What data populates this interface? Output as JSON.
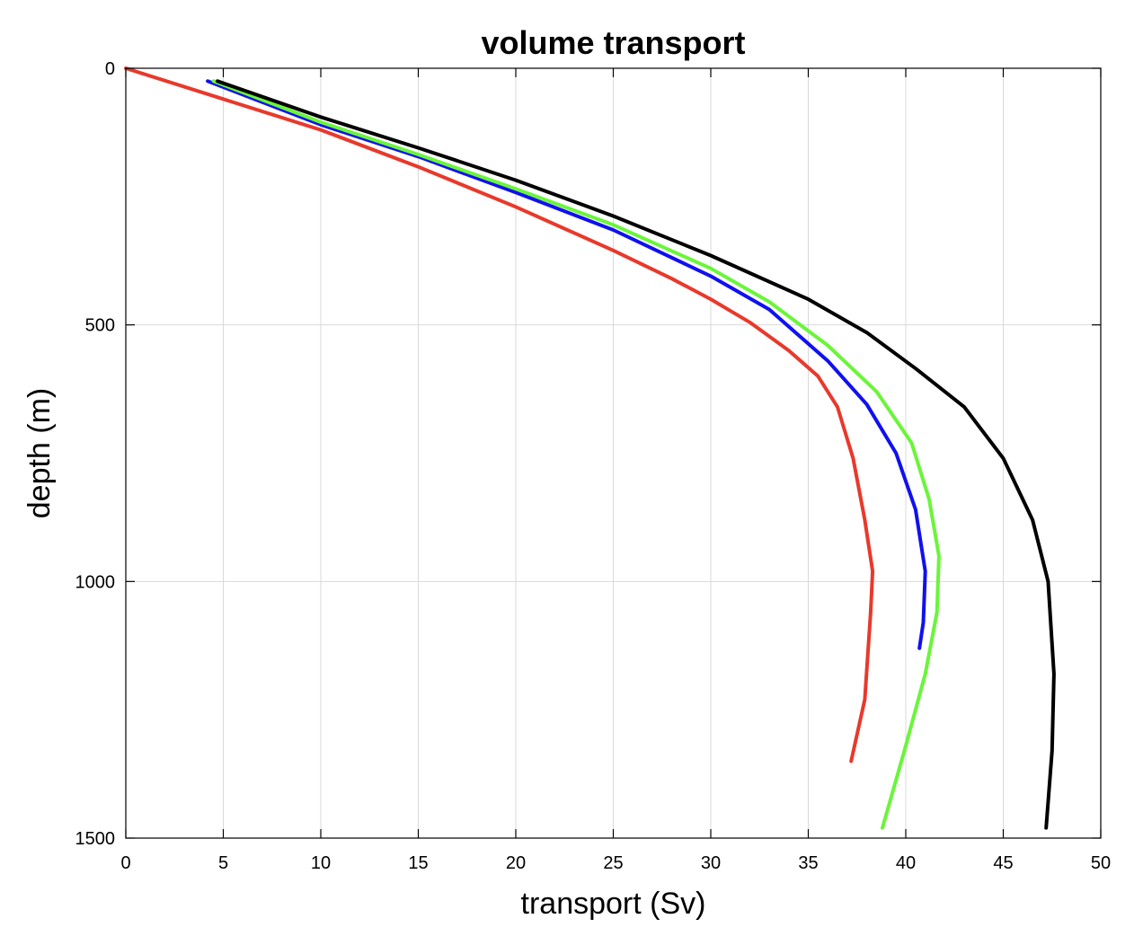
{
  "chart_data": {
    "type": "line",
    "title": "volume transport",
    "xlabel": "transport (Sv)",
    "ylabel": "depth (m)",
    "xlim": [
      0,
      50
    ],
    "ylim": [
      0,
      1500
    ],
    "y_reversed": true,
    "grid": true,
    "xticks": [
      0,
      5,
      10,
      15,
      20,
      25,
      30,
      35,
      40,
      45,
      50
    ],
    "yticks": [
      0,
      500,
      1000,
      1500
    ],
    "series": [
      {
        "color": "#e8392b",
        "points": [
          [
            0,
            0
          ],
          [
            5,
            60
          ],
          [
            10,
            120
          ],
          [
            15,
            192
          ],
          [
            20,
            270
          ],
          [
            25,
            355
          ],
          [
            28,
            410
          ],
          [
            30,
            450
          ],
          [
            32,
            495
          ],
          [
            34,
            550
          ],
          [
            35.5,
            600
          ],
          [
            36.5,
            660
          ],
          [
            37.3,
            760
          ],
          [
            37.9,
            880
          ],
          [
            38.3,
            980
          ],
          [
            38.2,
            1060
          ],
          [
            37.9,
            1230
          ],
          [
            37.2,
            1350
          ]
        ]
      },
      {
        "color": "#1010f0",
        "points": [
          [
            4.2,
            25
          ],
          [
            10,
            110
          ],
          [
            15,
            172
          ],
          [
            20,
            242
          ],
          [
            25,
            315
          ],
          [
            30,
            405
          ],
          [
            33,
            470
          ],
          [
            36,
            570
          ],
          [
            38,
            655
          ],
          [
            39.5,
            750
          ],
          [
            40.5,
            860
          ],
          [
            41,
            980
          ],
          [
            40.9,
            1080
          ],
          [
            40.7,
            1130
          ]
        ]
      },
      {
        "color": "#6af53a",
        "points": [
          [
            4.5,
            25
          ],
          [
            10,
            105
          ],
          [
            15,
            168
          ],
          [
            20,
            235
          ],
          [
            25,
            305
          ],
          [
            30,
            390
          ],
          [
            33,
            455
          ],
          [
            36,
            540
          ],
          [
            38.5,
            630
          ],
          [
            40.3,
            730
          ],
          [
            41.2,
            840
          ],
          [
            41.7,
            950
          ],
          [
            41.6,
            1060
          ],
          [
            41,
            1180
          ],
          [
            40,
            1320
          ],
          [
            38.8,
            1480
          ]
        ]
      },
      {
        "color": "#000000",
        "points": [
          [
            4.7,
            25
          ],
          [
            10,
            95
          ],
          [
            15,
            155
          ],
          [
            20,
            218
          ],
          [
            25,
            288
          ],
          [
            30,
            365
          ],
          [
            35,
            450
          ],
          [
            38,
            515
          ],
          [
            40.5,
            585
          ],
          [
            43,
            660
          ],
          [
            45,
            760
          ],
          [
            46.5,
            880
          ],
          [
            47.3,
            1000
          ],
          [
            47.6,
            1180
          ],
          [
            47.5,
            1330
          ],
          [
            47.2,
            1480
          ]
        ]
      }
    ]
  }
}
